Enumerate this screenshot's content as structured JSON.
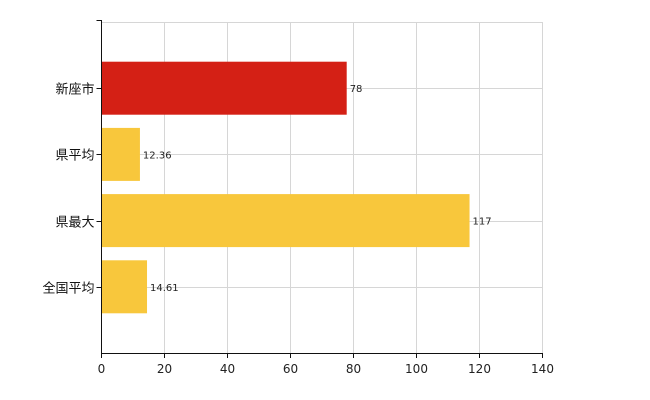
{
  "chart_data": {
    "type": "bar",
    "orientation": "horizontal",
    "categories": [
      "新座市",
      "県平均",
      "県最大",
      "全国平均"
    ],
    "values": [
      78,
      12.36,
      117,
      14.61
    ],
    "data_labels": [
      "78",
      "12.36",
      "117",
      "14.61"
    ],
    "xlim": [
      0,
      140
    ],
    "x_ticks": [
      0,
      20,
      40,
      60,
      80,
      100,
      120,
      140
    ],
    "grid": true,
    "legend": "none",
    "colors": {
      "highlight": "#D42015",
      "default": "#F8C73C"
    },
    "bar_colors": [
      "#D42015",
      "#F8C73C",
      "#F8C73C",
      "#F8C73C"
    ]
  }
}
